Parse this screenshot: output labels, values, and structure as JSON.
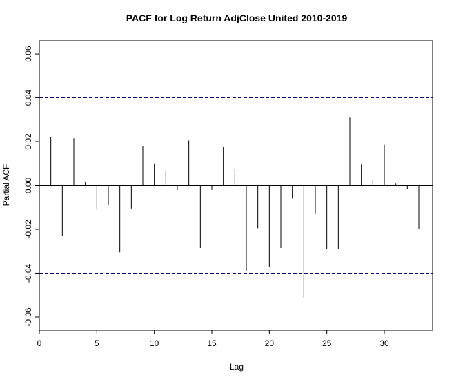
{
  "chart_data": {
    "type": "bar",
    "title": "PACF for Log Return AdjClose United 2010-2019",
    "xlabel": "Lag",
    "ylabel": "Partial ACF",
    "xlim": [
      0,
      34.2
    ],
    "ylim": [
      -0.066,
      0.066
    ],
    "x_ticks": [
      0,
      5,
      10,
      15,
      20,
      25,
      30
    ],
    "x_tick_labels": [
      "0",
      "5",
      "10",
      "15",
      "20",
      "25",
      "30"
    ],
    "y_ticks": [
      -0.06,
      -0.04,
      -0.02,
      0.0,
      0.02,
      0.04,
      0.06
    ],
    "y_tick_labels": [
      "-0.06",
      "-0.04",
      "-0.02",
      "0.00",
      "0.02",
      "0.04",
      "0.06"
    ],
    "confidence_bounds": [
      0.04,
      -0.04
    ],
    "colors": {
      "bars": "#000000",
      "bounds": "#00008b",
      "zero_line": "#000000"
    },
    "grid": false,
    "lags": [
      1,
      2,
      3,
      4,
      5,
      6,
      7,
      8,
      9,
      10,
      11,
      12,
      13,
      14,
      15,
      16,
      17,
      18,
      19,
      20,
      21,
      22,
      23,
      24,
      25,
      26,
      27,
      28,
      29,
      30,
      31,
      32,
      33
    ],
    "values": [
      0.022,
      -0.023,
      0.0215,
      0.0015,
      -0.011,
      -0.009,
      -0.0305,
      -0.0105,
      0.018,
      0.01,
      0.007,
      -0.002,
      0.0205,
      -0.0285,
      -0.002,
      0.0175,
      0.0075,
      -0.039,
      -0.0195,
      -0.037,
      -0.0285,
      -0.006,
      -0.0515,
      -0.013,
      -0.029,
      -0.029,
      0.031,
      0.0095,
      0.0025,
      0.0185,
      0.001,
      -0.0015,
      -0.02
    ]
  }
}
